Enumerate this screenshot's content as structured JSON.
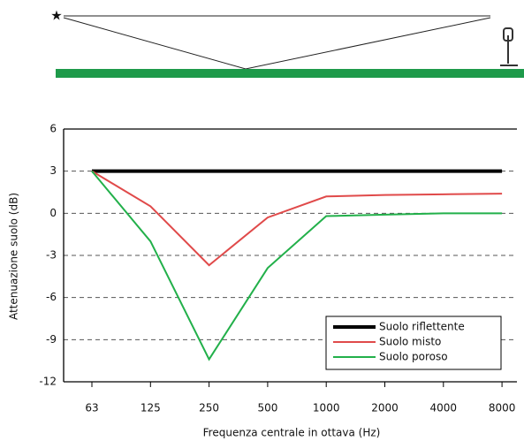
{
  "chart_data": {
    "type": "line",
    "categories": [
      "63",
      "125",
      "250",
      "500",
      "1000",
      "2000",
      "4000",
      "8000"
    ],
    "series": [
      {
        "name": "Suolo riflettente",
        "color": "#000000",
        "values": [
          3,
          3,
          3,
          3,
          3,
          3,
          3,
          3
        ]
      },
      {
        "name": "Suolo misto",
        "color": "#e04a4a",
        "values": [
          3,
          0.5,
          -3.7,
          -0.3,
          1.2,
          1.3,
          1.35,
          1.4
        ]
      },
      {
        "name": "Suolo poroso",
        "color": "#22b04a",
        "values": [
          3,
          -2,
          -10.4,
          -3.9,
          -0.2,
          -0.1,
          0,
          0
        ]
      }
    ],
    "ylim": [
      -12,
      6
    ],
    "yticks": [
      -12,
      -9,
      -6,
      -3,
      0,
      3,
      6
    ],
    "ylabel": "Attenuazione suolo (dB)",
    "xlabel": "Frequenza centrale in ottava (Hz)",
    "grid": true,
    "legend": "lower right"
  }
}
